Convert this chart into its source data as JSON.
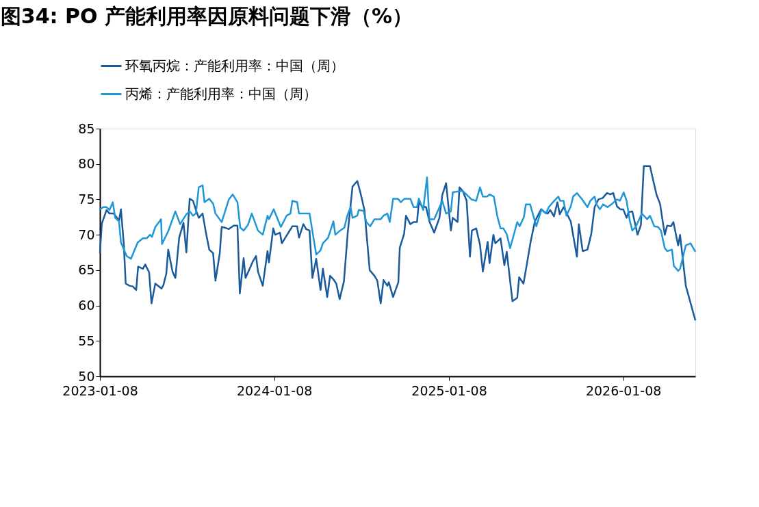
{
  "chart_data": {
    "type": "line",
    "title": "图34:  PO 产能利用率因原料问题下滑（%）",
    "xlim": [
      "2023-01-08",
      "2026-06-08"
    ],
    "xticks": [
      "2023-01-08",
      "2024-01-08",
      "2025-01-08",
      "2026-01-08"
    ],
    "ylim": [
      50,
      85
    ],
    "yticks": [
      50,
      55,
      60,
      65,
      70,
      75,
      80,
      85
    ],
    "grid": false,
    "legend": "top",
    "line_style": "solid",
    "marker": "none",
    "series": [
      {
        "name": "环氧丙烷：产能利用率：中国（周）",
        "color": "#1a5a9c",
        "x": [
          "2023-01-08",
          "2023-01-12",
          "2023-01-22",
          "2023-01-28",
          "2023-02-06",
          "2023-02-17",
          "2023-02-21",
          "2023-02-27",
          "2023-03-03",
          "2023-03-11",
          "2023-03-18",
          "2023-03-25",
          "2023-03-29",
          "2023-04-08",
          "2023-04-13",
          "2023-04-21",
          "2023-04-26",
          "2023-05-04",
          "2023-05-17",
          "2023-05-21",
          "2023-05-27",
          "2023-05-31",
          "2023-06-09",
          "2023-06-15",
          "2023-06-23",
          "2023-07-02",
          "2023-07-08",
          "2023-07-15",
          "2023-07-22",
          "2023-07-28",
          "2023-08-03",
          "2023-08-11",
          "2023-08-18",
          "2023-08-25",
          "2023-09-02",
          "2023-09-07",
          "2023-09-16",
          "2023-09-20",
          "2023-09-27",
          "2023-10-05",
          "2023-10-15",
          "2023-10-23",
          "2023-10-28",
          "2023-11-05",
          "2023-11-09",
          "2023-11-24",
          "2023-12-01",
          "2023-12-05",
          "2023-12-15",
          "2023-12-25",
          "2023-12-28",
          "2024-01-06",
          "2024-01-10",
          "2024-01-20",
          "2024-01-24",
          "2024-02-15",
          "2024-02-25",
          "2024-02-29",
          "2024-03-09",
          "2024-03-15",
          "2024-03-22",
          "2024-03-28",
          "2024-04-05",
          "2024-04-14",
          "2024-04-19",
          "2024-04-28",
          "2024-05-04",
          "2024-05-11",
          "2024-05-17",
          "2024-05-24",
          "2024-06-02",
          "2024-06-10",
          "2024-06-20",
          "2024-06-30",
          "2024-07-06",
          "2024-07-15",
          "2024-07-26",
          "2024-08-05",
          "2024-08-11",
          "2024-08-18",
          "2024-08-24",
          "2024-09-01",
          "2024-09-04",
          "2024-09-13",
          "2024-09-24",
          "2024-09-27",
          "2024-10-06",
          "2024-10-10",
          "2024-10-19",
          "2024-10-26",
          "2024-11-02",
          "2024-11-06",
          "2024-11-13",
          "2024-11-21",
          "2024-11-28",
          "2024-12-08",
          "2024-12-19",
          "2024-12-25",
          "2025-01-02",
          "2025-01-12",
          "2025-01-16",
          "2025-01-26",
          "2025-01-30",
          "2025-02-06",
          "2025-02-14",
          "2025-02-21",
          "2025-02-25",
          "2025-03-06",
          "2025-03-14",
          "2025-03-20",
          "2025-03-30",
          "2025-04-03",
          "2025-04-11",
          "2025-04-15",
          "2025-04-26",
          "2025-05-04",
          "2025-05-09",
          "2025-05-21",
          "2025-05-31",
          "2025-06-04",
          "2025-06-13",
          "2025-06-18",
          "2025-06-28",
          "2025-07-07",
          "2025-07-20",
          "2025-07-27",
          "2025-08-03",
          "2025-08-08",
          "2025-08-16",
          "2025-08-23",
          "2025-08-28",
          "2025-09-05",
          "2025-09-20",
          "2025-10-03",
          "2025-10-07",
          "2025-10-15",
          "2025-10-25",
          "2025-11-02",
          "2025-11-09",
          "2025-11-17",
          "2025-11-26",
          "2025-12-05",
          "2025-12-12",
          "2025-12-18",
          "2025-12-26",
          "2026-01-02",
          "2026-01-08",
          "2026-01-15",
          "2026-01-19",
          "2026-01-27",
          "2026-02-07",
          "2026-02-14",
          "2026-02-20",
          "2026-03-05",
          "2026-03-12",
          "2026-03-19",
          "2026-03-26",
          "2026-04-05",
          "2026-04-10",
          "2026-04-18",
          "2026-04-23",
          "2026-05-03",
          "2026-05-07",
          "2026-05-19",
          "2026-06-08"
        ],
        "values": [
          67.4,
          71.6,
          73.5,
          73,
          73,
          72,
          73.6,
          68.7,
          63.1,
          62.8,
          62.7,
          62.2,
          65.5,
          65.2,
          65.8,
          64.7,
          60.3,
          63.1,
          62.4,
          62.9,
          64.5,
          67.9,
          64.8,
          63.9,
          69.6,
          71.7,
          67.5,
          75.1,
          74.8,
          73.5,
          72.4,
          73,
          70.3,
          67.9,
          67.4,
          63.5,
          67.4,
          71.1,
          71,
          70.8,
          71.3,
          71.3,
          61.7,
          66.7,
          63.9,
          66.2,
          67,
          64.8,
          62.8,
          67.7,
          66.1,
          70.9,
          70,
          70.3,
          68.8,
          71.2,
          71.2,
          69.6,
          71.5,
          70.8,
          70.6,
          63.9,
          66.6,
          62.2,
          65.2,
          61.2,
          64.2,
          63.7,
          63.1,
          60.9,
          63.4,
          70.3,
          76.8,
          77.6,
          76.1,
          73.5,
          65,
          64.2,
          63.5,
          60.3,
          63.6,
          62.8,
          63.3,
          61.2,
          63.3,
          68.2,
          70.1,
          72.7,
          71.5,
          71.8,
          71.8,
          74.6,
          74,
          73.9,
          71.9,
          70.3,
          72.4,
          75.6,
          77.3,
          70.6,
          72.4,
          71.8,
          76.7,
          76.2,
          74.8,
          66.9,
          70.6,
          70.9,
          68.6,
          64.8,
          69,
          66,
          70,
          68.8,
          69.5,
          65.7,
          67.6,
          60.6,
          61.1,
          64,
          63.1,
          65,
          69,
          71.9,
          73.6,
          73.2,
          73,
          73.5,
          72.6,
          74.6,
          72.9,
          73.9,
          71.9,
          66.9,
          71.5,
          67.7,
          67.9,
          70.1,
          73.9,
          75,
          75.2,
          75.9,
          75.7,
          75.9,
          74,
          73.6,
          73.6,
          72.4,
          73.2,
          73.3,
          70,
          71.4,
          79.7,
          79.7,
          77.6,
          75.6,
          74.4,
          70,
          71.3,
          71.2,
          71.8,
          68.5,
          70,
          62.8,
          57.9
        ]
      },
      {
        "name": "丙烯：产能利用率：中国（周）",
        "color": "#1e96d8",
        "x": [
          "2023-01-08",
          "2023-01-15",
          "2023-01-22",
          "2023-01-28",
          "2023-02-04",
          "2023-02-09",
          "2023-02-17",
          "2023-02-21",
          "2023-03-05",
          "2023-03-14",
          "2023-03-28",
          "2023-04-08",
          "2023-04-16",
          "2023-04-23",
          "2023-04-27",
          "2023-05-04",
          "2023-05-16",
          "2023-05-18",
          "2023-05-31",
          "2023-06-15",
          "2023-06-25",
          "2023-07-08",
          "2023-07-15",
          "2023-07-22",
          "2023-07-28",
          "2023-08-03",
          "2023-08-11",
          "2023-08-15",
          "2023-08-25",
          "2023-09-02",
          "2023-09-07",
          "2023-09-20",
          "2023-10-05",
          "2023-10-13",
          "2023-10-23",
          "2023-10-29",
          "2023-11-05",
          "2023-11-14",
          "2023-11-22",
          "2023-12-05",
          "2023-12-15",
          "2023-12-25",
          "2023-12-28",
          "2024-01-07",
          "2024-01-22",
          "2024-02-03",
          "2024-02-11",
          "2024-02-15",
          "2024-02-25",
          "2024-02-29",
          "2024-03-22",
          "2024-04-05",
          "2024-04-14",
          "2024-04-19",
          "2024-04-30",
          "2024-05-11",
          "2024-05-15",
          "2024-05-25",
          "2024-06-03",
          "2024-06-09",
          "2024-06-16",
          "2024-06-20",
          "2024-06-30",
          "2024-07-03",
          "2024-07-13",
          "2024-07-19",
          "2024-07-27",
          "2024-08-05",
          "2024-08-18",
          "2024-08-24",
          "2024-09-01",
          "2024-09-06",
          "2024-09-13",
          "2024-09-23",
          "2024-09-29",
          "2024-10-07",
          "2024-10-19",
          "2024-10-26",
          "2024-11-02",
          "2024-11-06",
          "2024-11-15",
          "2024-11-23",
          "2024-11-28",
          "2024-12-08",
          "2024-12-25",
          "2025-01-02",
          "2025-01-12",
          "2025-01-16",
          "2025-02-05",
          "2025-02-12",
          "2025-02-24",
          "2025-03-06",
          "2025-03-14",
          "2025-03-20",
          "2025-03-29",
          "2025-04-03",
          "2025-04-12",
          "2025-04-19",
          "2025-04-26",
          "2025-05-02",
          "2025-05-09",
          "2025-05-16",
          "2025-05-31",
          "2025-06-05",
          "2025-06-14",
          "2025-06-18",
          "2025-06-27",
          "2025-07-10",
          "2025-07-21",
          "2025-07-30",
          "2025-08-05",
          "2025-08-15",
          "2025-08-25",
          "2025-08-29",
          "2025-09-05",
          "2025-09-11",
          "2025-09-20",
          "2025-09-25",
          "2025-10-03",
          "2025-10-14",
          "2025-10-25",
          "2025-10-31",
          "2025-11-09",
          "2025-11-13",
          "2025-11-20",
          "2025-11-27",
          "2025-12-06",
          "2025-12-16",
          "2025-12-26",
          "2026-01-01",
          "2026-01-09",
          "2026-01-15",
          "2026-01-22",
          "2026-01-27",
          "2026-02-03",
          "2026-02-16",
          "2026-02-27",
          "2026-03-05",
          "2026-03-14",
          "2026-03-22",
          "2026-03-28",
          "2026-04-05",
          "2026-04-10",
          "2026-04-20",
          "2026-04-24",
          "2026-05-03",
          "2026-05-07",
          "2026-05-19",
          "2026-05-29",
          "2026-06-08"
        ],
        "values": [
          73.6,
          73.9,
          73.9,
          73.5,
          74.6,
          72.4,
          71.9,
          68.9,
          67,
          66.6,
          68.9,
          69.5,
          69.5,
          70,
          69.7,
          71.1,
          72.2,
          68.7,
          70.5,
          73.3,
          71.5,
          72.9,
          73.3,
          72.7,
          73,
          76.7,
          77,
          74.6,
          75.1,
          74.4,
          73,
          71.8,
          75,
          75.7,
          74.6,
          71,
          70.6,
          71.4,
          73,
          70.6,
          70,
          72.7,
          72.2,
          73.6,
          71.1,
          72.7,
          73,
          74.8,
          74.6,
          73,
          73,
          67.2,
          67.8,
          68.8,
          69.6,
          71.9,
          70,
          70.6,
          71,
          72.7,
          73.9,
          72.4,
          72.7,
          73.5,
          73.4,
          71.8,
          71.2,
          72.2,
          72.2,
          72.7,
          73,
          71.8,
          75.1,
          75.1,
          74.6,
          75.1,
          75.1,
          73.9,
          73.9,
          75.1,
          73.5,
          78.1,
          72.2,
          72.2,
          74.8,
          73,
          73.3,
          76,
          76.2,
          75.8,
          75,
          74.8,
          76.7,
          75.4,
          75.4,
          75.7,
          75.4,
          72.7,
          70.9,
          70.9,
          70.1,
          68.1,
          71.8,
          71.2,
          72.5,
          74.3,
          74.3,
          71.2,
          73.6,
          73,
          73.9,
          74.7,
          75.4,
          74.8,
          74.8,
          72.7,
          74,
          75.4,
          75.9,
          75,
          73.9,
          74.8,
          75.4,
          74.3,
          73.6,
          74.3,
          73.9,
          74.4,
          75,
          74.8,
          76,
          74.8,
          71.9,
          70.6,
          71.1,
          73,
          72.2,
          72.7,
          71.2,
          71.1,
          70.6,
          68.1,
          67.7,
          67.9,
          65.6,
          64.9,
          65.2,
          68.5,
          68.8,
          67.6
        ]
      }
    ]
  }
}
